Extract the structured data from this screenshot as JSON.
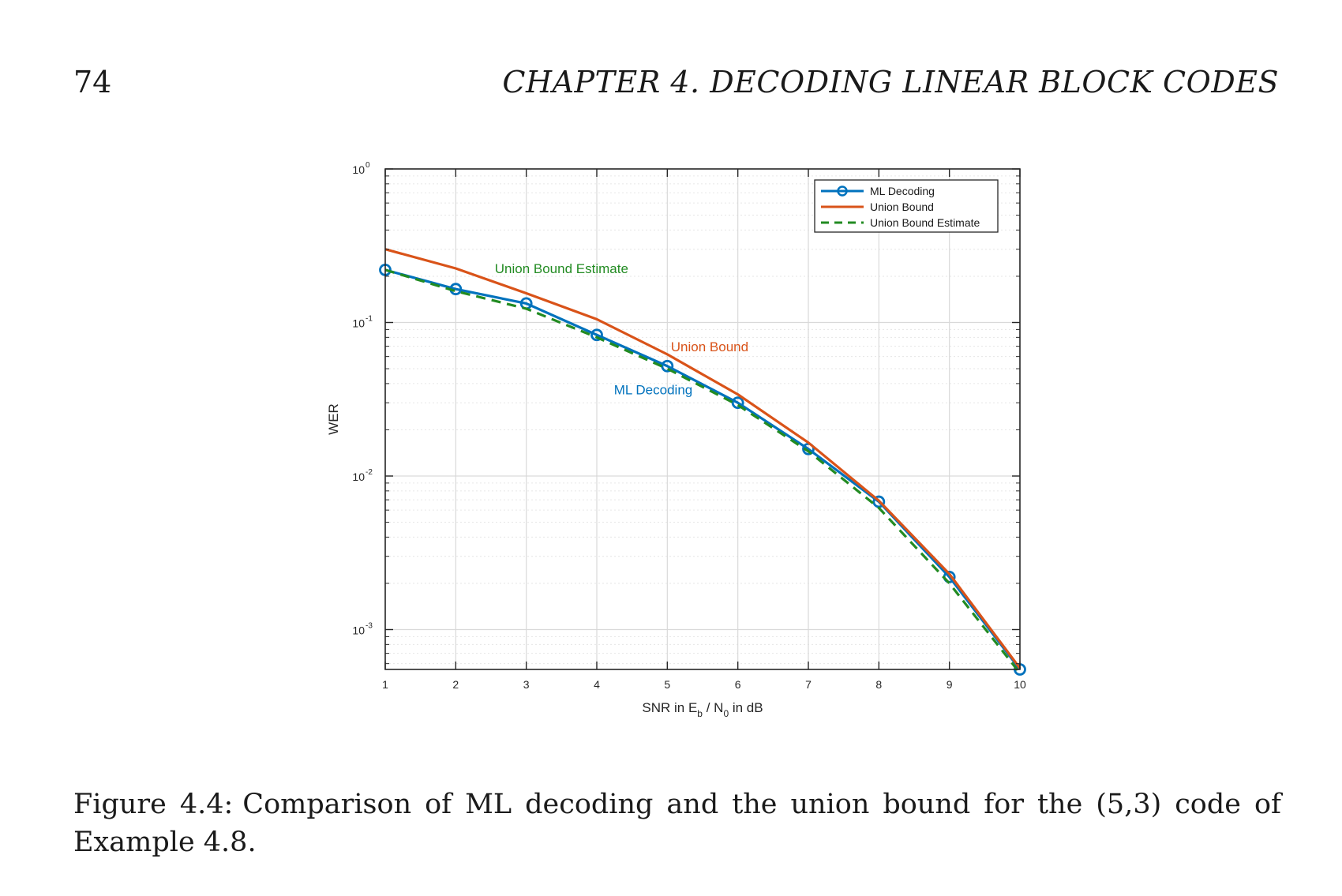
{
  "page": {
    "number": "74",
    "running_head": "CHAPTER 4.  DECODING LINEAR BLOCK CODES"
  },
  "caption": {
    "label": "Figure 4.4:",
    "text": "Comparison of ML decoding and the union bound for the (5,3) code of Example 4.8."
  },
  "colors": {
    "ml": "#0072BD",
    "ub": "#D95319",
    "ube": "#228B22",
    "grid": "#d9d9d9",
    "axis": "#262626"
  },
  "chart_data": {
    "type": "line",
    "yscale": "log",
    "xlabel": {
      "main": "SNR in E",
      "sub1": "b",
      "mid": " / N",
      "sub2": "0",
      "tail": " in dB"
    },
    "ylabel": "WER",
    "xlim": [
      1,
      10
    ],
    "ylim": [
      0.00055,
      1
    ],
    "x": [
      1,
      2,
      3,
      4,
      5,
      6,
      7,
      8,
      9,
      10
    ],
    "xtick_labels": [
      "1",
      "2",
      "3",
      "4",
      "5",
      "6",
      "7",
      "8",
      "9",
      "10"
    ],
    "ytick_labels": [
      {
        "exp": "0",
        "value": 1
      },
      {
        "exp": "-1",
        "value": 0.1
      },
      {
        "exp": "-2",
        "value": 0.01
      },
      {
        "exp": "-3",
        "value": 0.001
      }
    ],
    "ytick_base": "10",
    "grid": true,
    "legend_position": "top-right",
    "series": [
      {
        "name": "ML Decoding",
        "color_key": "ml",
        "style": "solid-marker",
        "values": [
          0.22,
          0.165,
          0.133,
          0.083,
          0.052,
          0.03,
          0.015,
          0.0068,
          0.0022,
          0.00055
        ]
      },
      {
        "name": "Union Bound",
        "color_key": "ub",
        "style": "solid",
        "values": [
          0.3,
          0.225,
          0.155,
          0.105,
          0.062,
          0.034,
          0.0165,
          0.0069,
          0.0023,
          0.00056
        ]
      },
      {
        "name": "Union Bound Estimate",
        "color_key": "ube",
        "style": "dashed",
        "values": [
          0.22,
          0.16,
          0.123,
          0.08,
          0.05,
          0.029,
          0.0145,
          0.0062,
          0.002,
          0.00052
        ]
      }
    ],
    "annotations": [
      {
        "text": "Union Bound Estimate",
        "color_key": "ube",
        "x": 3.5,
        "y": 0.21
      },
      {
        "text": "Union Bound",
        "color_key": "ub",
        "x": 5.6,
        "y": 0.065
      },
      {
        "text": "ML Decoding",
        "color_key": "ml",
        "x": 4.8,
        "y": 0.034
      }
    ]
  }
}
